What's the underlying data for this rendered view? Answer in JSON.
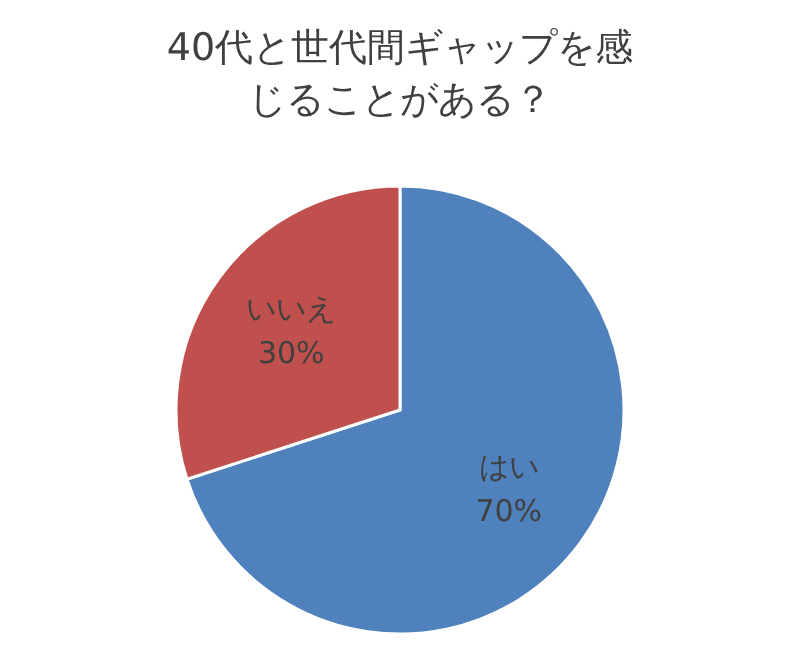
{
  "chart_data": {
    "type": "pie",
    "title": "40代と世代間ギャップを感じることがある？",
    "categories": [
      "はい",
      "いいえ"
    ],
    "values": [
      70,
      30
    ],
    "colors": [
      "#4f81bd",
      "#c0504d"
    ],
    "value_labels": [
      "70%",
      "30%"
    ]
  }
}
